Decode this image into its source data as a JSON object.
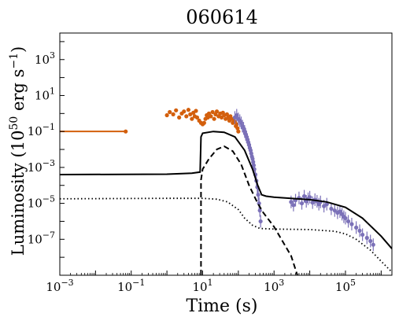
{
  "chart_data": {
    "type": "scatter",
    "title": "060614",
    "xlabel": "Time (s)",
    "ylabel": "Luminosity (10",
    "ylabel_sup": "50",
    "ylabel_unit": " erg s",
    "ylabel_unit_sup": "−1",
    "ylabel_close": ")",
    "xscale": "log",
    "yscale": "log",
    "xlim": [
      0.001,
      2000000
    ],
    "ylim": [
      1e-09,
      30000
    ],
    "grid": false,
    "x_ticks": [
      {
        "value": 0.001,
        "base": "10",
        "exp": "−3"
      },
      {
        "value": 0.1,
        "base": "10",
        "exp": "−1"
      },
      {
        "value": 10,
        "base": "10",
        "exp": "1"
      },
      {
        "value": 1000,
        "base": "10",
        "exp": "3"
      },
      {
        "value": 100000,
        "base": "10",
        "exp": "5"
      }
    ],
    "y_ticks": [
      {
        "value": 1e-07,
        "base": "10",
        "exp": "−7"
      },
      {
        "value": 1e-05,
        "base": "10",
        "exp": "−5"
      },
      {
        "value": 0.001,
        "base": "10",
        "exp": "−3"
      },
      {
        "value": 0.1,
        "base": "10",
        "exp": "−1"
      },
      {
        "value": 10,
        "base": "10",
        "exp": "1"
      },
      {
        "value": 1000,
        "base": "10",
        "exp": "3"
      }
    ],
    "colors": {
      "bat": "#d35f0c",
      "xrt": "#7b71b8",
      "model": "#000000"
    },
    "series": [
      {
        "style": "orange-errorbar-points",
        "x": [
          0.07
        ],
        "y": [
          0.1
        ],
        "xerr_low": [
          0.06999
        ],
        "xerr_high": [
          0.0
        ]
      },
      {
        "style": "orange-points",
        "x": [
          1.0,
          1.2,
          1.5,
          1.8,
          2.2,
          2.6,
          3.0,
          3.5,
          4.0,
          4.5,
          5.0,
          5.5,
          6.0,
          6.5,
          7.0,
          8.0,
          9.0,
          10.0,
          11.0,
          12.0,
          13.0,
          14.0,
          15.0,
          17.0,
          19.0,
          21.0,
          23.0,
          25.0,
          28.0,
          31.0,
          34.0,
          37.0,
          40.0,
          44.0,
          48.0,
          52.0,
          56.0,
          60.0,
          65.0,
          70.0,
          75.0,
          80.0,
          85.0,
          90.0,
          95.0,
          100.0
        ],
        "y": [
          0.8,
          1.2,
          0.9,
          1.5,
          0.6,
          1.0,
          1.3,
          0.7,
          1.6,
          0.9,
          0.5,
          1.1,
          0.7,
          1.4,
          0.6,
          0.4,
          0.3,
          0.25,
          0.3,
          0.5,
          0.8,
          0.6,
          1.0,
          0.7,
          1.2,
          0.5,
          0.9,
          1.3,
          0.7,
          1.0,
          0.6,
          1.1,
          0.8,
          0.5,
          0.9,
          0.6,
          0.4,
          0.7,
          0.5,
          0.3,
          0.4,
          0.35,
          0.2,
          0.25,
          0.15,
          0.1
        ]
      },
      {
        "style": "purple-points",
        "x": [
          80,
          90,
          100,
          110,
          120,
          130,
          140,
          150,
          160,
          170,
          180,
          190,
          200,
          210,
          220,
          230,
          240,
          250,
          260,
          270,
          280,
          300,
          320,
          340,
          360,
          380,
          400,
          420,
          3000,
          3500,
          4000,
          5000,
          6000,
          7000,
          8000,
          9000,
          10000,
          12000,
          14000,
          16000,
          18000,
          20000,
          25000,
          30000,
          40000,
          50000,
          60000,
          70000,
          80000,
          90000,
          100000,
          120000,
          150000,
          200000,
          250000,
          300000,
          400000,
          500000,
          600000
        ],
        "y": [
          0.6,
          0.8,
          0.5,
          0.4,
          0.3,
          0.2,
          0.15,
          0.1,
          0.07,
          0.05,
          0.035,
          0.025,
          0.018,
          0.012,
          0.009,
          0.006,
          0.004,
          0.003,
          0.002,
          0.0013,
          0.0008,
          0.0004,
          0.00018,
          8e-05,
          3e-05,
          1e-05,
          4e-06,
          1e-06,
          1.2e-05,
          8e-06,
          1.5e-05,
          2e-05,
          1e-05,
          2.5e-05,
          1.3e-05,
          1.8e-05,
          2.2e-05,
          1.1e-05,
          1.6e-05,
          1.3e-05,
          9e-06,
          1.2e-05,
          7e-06,
          9e-06,
          5e-06,
          4e-06,
          3e-06,
          3.5e-06,
          2.5e-06,
          1.8e-06,
          1.5e-06,
          1e-06,
          7e-07,
          4.5e-07,
          3e-07,
          1.8e-07,
          1.2e-07,
          8e-08,
          5e-08
        ]
      },
      {
        "style": "solid",
        "x": [
          0.001,
          1,
          5,
          8.5,
          9.0,
          10,
          20,
          40,
          80,
          150,
          250,
          350,
          450,
          600,
          1000,
          3000,
          10000,
          30000,
          100000,
          300000,
          1000000,
          2000000
        ],
        "y": [
          0.0004,
          0.00042,
          0.00048,
          0.00055,
          0.05,
          0.08,
          0.1,
          0.09,
          0.05,
          0.009,
          0.0008,
          0.0001,
          3e-05,
          2.5e-05,
          2.2e-05,
          1.9e-05,
          1.6e-05,
          1.2e-05,
          6e-06,
          1.5e-06,
          1.5e-07,
          3e-08
        ]
      },
      {
        "style": "dashed",
        "x": [
          9.0,
          9.0,
          10,
          15,
          25,
          40,
          70,
          120,
          200,
          350,
          500,
          1000,
          3000,
          4500
        ],
        "y": [
          1e-09,
          0.0002,
          0.0008,
          0.003,
          0.01,
          0.015,
          0.008,
          0.0015,
          0.0001,
          1e-05,
          3e-06,
          5e-07,
          1.2e-08,
          1e-09
        ]
      },
      {
        "style": "dotted",
        "x": [
          0.001,
          1,
          10,
          25,
          50,
          100,
          150,
          250,
          400,
          700,
          1000,
          10000,
          50000,
          100000,
          200000,
          500000,
          1000000,
          2000000
        ],
        "y": [
          1.8e-05,
          1.9e-05,
          1.9e-05,
          1.7e-05,
          1.2e-05,
          4.5e-06,
          1.5e-06,
          6e-07,
          4e-07,
          3.8e-07,
          3.7e-07,
          3.5e-07,
          2.8e-07,
          2e-07,
          1e-07,
          2.5e-08,
          6e-09,
          1.5e-09
        ]
      }
    ]
  }
}
